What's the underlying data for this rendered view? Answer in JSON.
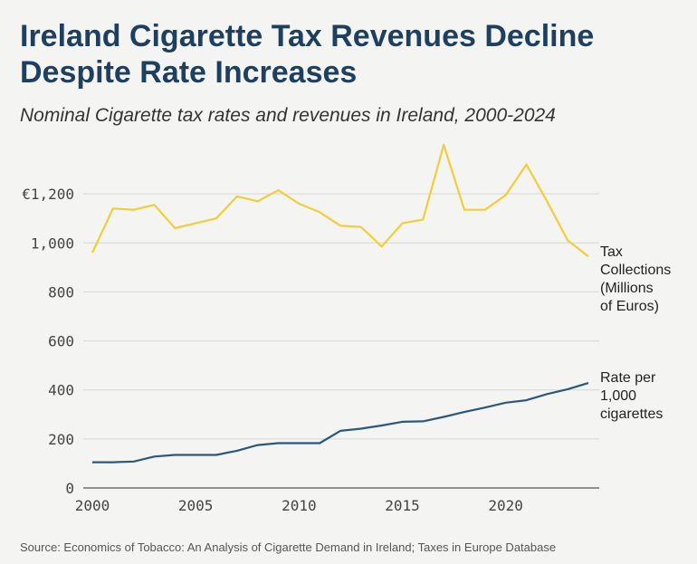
{
  "title": "Ireland Cigarette Tax Revenues Decline Despite Rate Increases",
  "subtitle": "Nominal Cigarette tax rates and revenues in Ireland, 2000-2024",
  "source": "Source: Economics of Tobacco: An Analysis of Cigarette Demand in Ireland; Taxes in Europe Database",
  "chart_data": {
    "type": "line",
    "title": "Ireland Cigarette Tax Revenues Decline Despite Rate Increases",
    "subtitle": "Nominal Cigarette tax rates and revenues in Ireland, 2000-2024",
    "x": [
      2000,
      2001,
      2002,
      2003,
      2004,
      2005,
      2006,
      2007,
      2008,
      2009,
      2010,
      2011,
      2012,
      2013,
      2014,
      2015,
      2016,
      2017,
      2018,
      2019,
      2020,
      2021,
      2022,
      2023,
      2024
    ],
    "xlim": [
      2000,
      2024
    ],
    "ylim": [
      0,
      1400
    ],
    "x_ticks": [
      2000,
      2005,
      2010,
      2015,
      2020
    ],
    "y_ticks": [
      {
        "value": 0,
        "label": "0"
      },
      {
        "value": 200,
        "label": "200"
      },
      {
        "value": 400,
        "label": "400"
      },
      {
        "value": 600,
        "label": "600"
      },
      {
        "value": 800,
        "label": "800"
      },
      {
        "value": 1000,
        "label": "1,000"
      },
      {
        "value": 1200,
        "label": "€1,200"
      }
    ],
    "grid": true,
    "series": [
      {
        "name": "Tax Collections (Millions of Euros)",
        "label_lines": [
          "Tax",
          "Collections",
          "(Millions",
          "of Euros)"
        ],
        "color": "#f2cd3a",
        "values": [
          960,
          1140,
          1135,
          1155,
          1060,
          1080,
          1100,
          1190,
          1170,
          1215,
          1160,
          1125,
          1070,
          1065,
          985,
          1080,
          1095,
          1400,
          1135,
          1135,
          1195,
          1320,
          1170,
          1010,
          945
        ]
      },
      {
        "name": "Rate per 1,000 cigarettes",
        "label_lines": [
          "Rate per",
          "1,000",
          "cigarettes"
        ],
        "color": "#2a587c",
        "values": [
          105,
          105,
          108,
          128,
          135,
          135,
          135,
          152,
          175,
          183,
          183,
          183,
          233,
          242,
          255,
          270,
          272,
          290,
          310,
          328,
          348,
          358,
          383,
          403,
          428
        ]
      }
    ]
  }
}
